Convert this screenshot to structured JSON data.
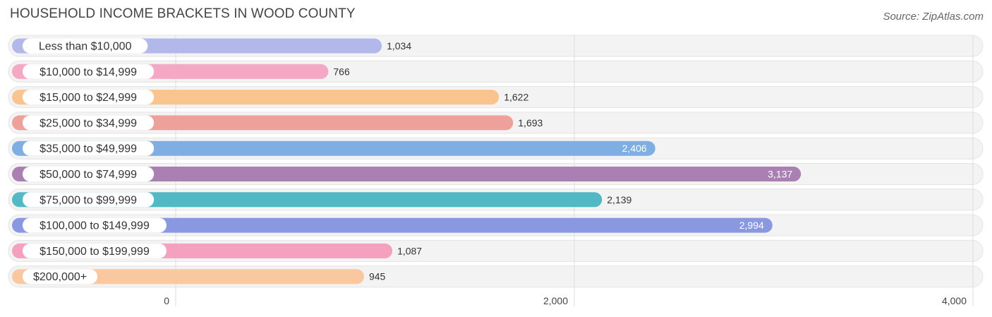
{
  "title": "HOUSEHOLD INCOME BRACKETS IN WOOD COUNTY",
  "source": "Source: ZipAtlas.com",
  "chart_data": {
    "type": "bar",
    "orientation": "horizontal",
    "title": "HOUSEHOLD INCOME BRACKETS IN WOOD COUNTY",
    "categories": [
      "Less than $10,000",
      "$10,000 to $14,999",
      "$15,000 to $24,999",
      "$25,000 to $34,999",
      "$35,000 to $49,999",
      "$50,000 to $74,999",
      "$75,000 to $99,999",
      "$100,000 to $149,999",
      "$150,000 to $199,999",
      "$200,000+"
    ],
    "values": [
      1034,
      766,
      1622,
      1693,
      2406,
      3137,
      2139,
      2994,
      1087,
      945
    ],
    "value_labels": [
      "1,034",
      "766",
      "1,622",
      "1,693",
      "2,406",
      "3,137",
      "2,139",
      "2,994",
      "1,087",
      "945"
    ],
    "colors": [
      "#b3b8ea",
      "#f5a8c4",
      "#f9c48e",
      "#eda19a",
      "#7eaee2",
      "#a97fb4",
      "#52b8c4",
      "#8a98e2",
      "#f5a0bf",
      "#f9c89e"
    ],
    "xlim": [
      0,
      4000
    ],
    "x_ticks": [
      0,
      2000,
      4000
    ],
    "x_tick_labels": [
      "0",
      "2,000",
      "4,000"
    ],
    "grid": true
  }
}
